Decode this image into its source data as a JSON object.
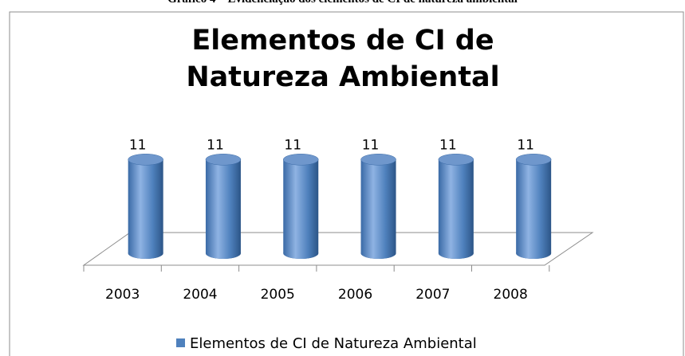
{
  "caption": "Gráfico 4 – Evidenciação dos elementos de CI de natureza ambiental",
  "chart_data": {
    "type": "bar",
    "title": "Elementos de CI de Natureza Ambiental",
    "categories": [
      "2003",
      "2004",
      "2005",
      "2006",
      "2007",
      "2008"
    ],
    "series": [
      {
        "name": "Elementos de CI de Natureza Ambiental",
        "color": "#4f81bd",
        "values": [
          11,
          11,
          11,
          11,
          11,
          11
        ]
      }
    ]
  }
}
